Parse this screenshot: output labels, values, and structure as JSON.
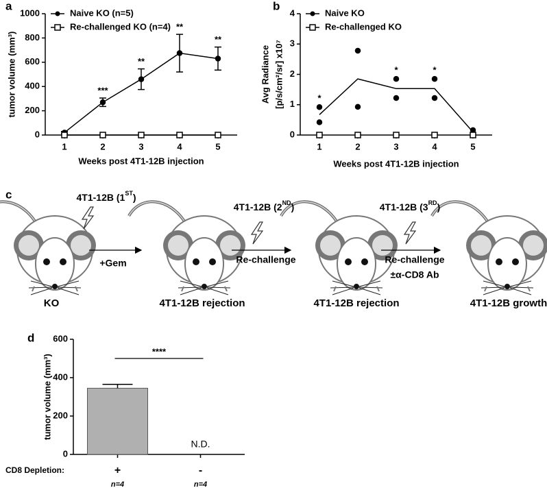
{
  "chart_data": [
    {
      "panel": "a",
      "type": "line",
      "ylabel": "tumor volume (mm³)",
      "xlabel": "Weeks post 4T1-12B injection",
      "x": [
        1,
        2,
        3,
        4,
        5
      ],
      "xlim": [
        0.5,
        5.5
      ],
      "xticks": [
        1,
        2,
        3,
        4,
        5
      ],
      "ylim": [
        0,
        1000
      ],
      "yticks": [
        0,
        200,
        400,
        600,
        800,
        1000
      ],
      "legend": "upper left",
      "series": [
        {
          "name": "Naive KO (n=5)",
          "color": "#000000",
          "marker": "circle",
          "values": [
            20,
            270,
            460,
            675,
            630
          ],
          "errors": [
            10,
            35,
            85,
            155,
            95
          ]
        },
        {
          "name": "Re-challenged KO (n=4)",
          "color": "#000000",
          "marker": "square",
          "values": [
            0,
            0,
            0,
            0,
            0
          ]
        }
      ],
      "annotations": [
        null,
        "***",
        "**",
        "**",
        "**"
      ]
    },
    {
      "panel": "b",
      "type": "scatter",
      "ylabel": [
        "Avg Radiance",
        "[p/s/cm²/sr] x10⁷"
      ],
      "xlabel": "Weeks post 4T1-12B injection",
      "xlim": [
        0.5,
        5.5
      ],
      "xticks": [
        1,
        2,
        3,
        4,
        5
      ],
      "ylim": [
        0,
        4
      ],
      "yticks": [
        0,
        1,
        2,
        3,
        4
      ],
      "legend": "upper left",
      "series": [
        {
          "name": "Naive KO",
          "color": "#000000",
          "marker": "circle",
          "x": [
            1,
            1,
            2,
            2,
            3,
            3,
            4,
            4,
            5,
            5
          ],
          "values": [
            0.92,
            0.42,
            2.78,
            0.93,
            1.85,
            1.22,
            1.85,
            1.22,
            0.16,
            0.05
          ]
        },
        {
          "name": "Re-challenged KO",
          "color": "#000000",
          "marker": "square",
          "x": [
            1,
            2,
            3,
            4,
            5
          ],
          "values": [
            0,
            0,
            0,
            0,
            0
          ]
        }
      ],
      "mean_line": {
        "x": [
          1,
          2,
          3,
          4,
          5
        ],
        "values": [
          0.67,
          1.85,
          1.53,
          1.53,
          0.1
        ]
      },
      "annotations": {
        "x": [
          1,
          3,
          4
        ],
        "labels": [
          "*",
          "*",
          "*"
        ]
      }
    },
    {
      "panel": "d",
      "type": "bar",
      "ylabel": "tumor volume (mm³)",
      "categories": [
        "+",
        "-"
      ],
      "values": [
        345,
        null
      ],
      "errors": [
        20,
        null
      ],
      "value_labels": [
        null,
        "N.D."
      ],
      "color": "#b0b0b0",
      "ylim": [
        0,
        600
      ],
      "yticks": [
        0,
        200,
        400,
        600
      ],
      "row_label": "CD8 Depletion:",
      "sample_sizes": [
        "n=4",
        "n=4"
      ],
      "significance": "****"
    }
  ],
  "diagram": {
    "panel": "c",
    "injections": [
      {
        "pre": "4T1-12B (1",
        "sup": "ST",
        "post": ")"
      },
      {
        "pre": "4T1-12B (2",
        "sup": "ND",
        "post": ")"
      },
      {
        "pre": "4T1-12B (3",
        "sup": "RD",
        "post": ")"
      }
    ],
    "steps": [
      [
        "+Gem"
      ],
      [
        "Re-challenge"
      ],
      [
        "Re-challenge",
        "±α-CD8 Ab"
      ]
    ],
    "outcomes": [
      "KO",
      "4T1-12B rejection",
      "4T1-12B rejection",
      "4T1-12B growth"
    ]
  }
}
